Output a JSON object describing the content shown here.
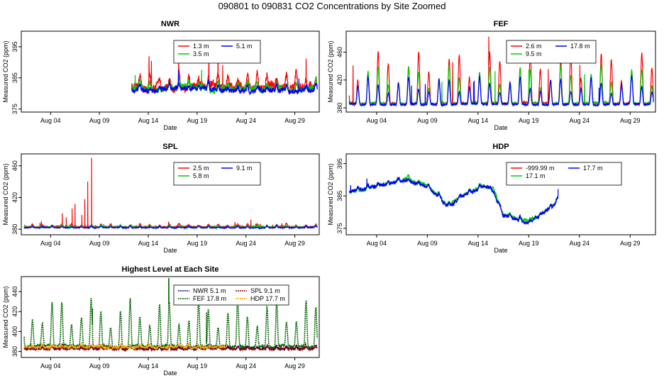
{
  "page_title": "090801  to  090831 CO2 Concentrations by Site Zoomed",
  "colors": {
    "red": "#ff0000",
    "green": "#00cc00",
    "blue": "#0000ff",
    "darkgreen": "#006400",
    "darkred": "#8b0000",
    "navy": "#000080",
    "orange": "#ffa500"
  },
  "chart_data": [
    {
      "id": "nwr",
      "type": "line",
      "title": "NWR",
      "xlabel": "Date",
      "ylabel": "Measured CO2 (ppm)",
      "xlim": [
        0,
        30.5
      ],
      "ylim": [
        374,
        400
      ],
      "xticks": [
        3,
        8,
        13,
        18,
        23,
        28
      ],
      "xticklabels": [
        "Aug 04",
        "Aug 09",
        "Aug 14",
        "Aug 19",
        "Aug 24",
        "Aug 29"
      ],
      "yticks": [
        375,
        385,
        395
      ],
      "yticklabels": [
        "375",
        "385",
        "395"
      ],
      "series": [
        {
          "name": "1.3 m",
          "color": "#ff0000",
          "start": 11.3,
          "end": 30.3,
          "base": 382,
          "diurnal": 5,
          "spike": 0.5,
          "noise": 2.2,
          "seed": 11
        },
        {
          "name": "3.5 m",
          "color": "#00cc00",
          "start": 11.3,
          "end": 30.3,
          "base": 381.5,
          "diurnal": 3,
          "spike": 0.2,
          "noise": 1.6,
          "seed": 12
        },
        {
          "name": "5.1 m",
          "color": "#0000ff",
          "start": 11.3,
          "end": 30.3,
          "base": 381,
          "diurnal": 2,
          "spike": 0.1,
          "noise": 1.4,
          "seed": 13
        }
      ],
      "legend": {
        "position": "top-center",
        "columns": 2,
        "style": "line"
      }
    },
    {
      "id": "fef",
      "type": "line",
      "title": "FEF",
      "xlabel": "Date",
      "ylabel": "Measured CO2 (ppm)",
      "xlim": [
        0,
        30.5
      ],
      "ylim": [
        374,
        490
      ],
      "xticks": [
        3,
        8,
        13,
        18,
        23,
        28
      ],
      "xticklabels": [
        "Aug 04",
        "Aug 09",
        "Aug 14",
        "Aug 19",
        "Aug 24",
        "Aug 29"
      ],
      "yticks": [
        380,
        420,
        460
      ],
      "yticklabels": [
        "380",
        "420",
        "460"
      ],
      "series": [
        {
          "name": "2.6 m",
          "color": "#ff0000",
          "start": 0.3,
          "end": 30.3,
          "base": 386,
          "diurnal": 75,
          "spike": 0.3,
          "noise": 3,
          "seed": 21
        },
        {
          "name": "9.5 m",
          "color": "#00cc00",
          "start": 0.3,
          "end": 30.3,
          "base": 386,
          "diurnal": 55,
          "spike": 0.2,
          "noise": 2.5,
          "seed": 22
        },
        {
          "name": "17.8 m",
          "color": "#0000ff",
          "start": 0.3,
          "end": 30.3,
          "base": 385,
          "diurnal": 40,
          "spike": 0.1,
          "noise": 2,
          "seed": 23
        }
      ],
      "legend": {
        "position": "top-center",
        "columns": 2,
        "style": "line"
      }
    },
    {
      "id": "spl",
      "type": "line",
      "title": "SPL",
      "xlabel": "Date",
      "ylabel": "Measured CO2 (ppm)",
      "xlim": [
        0,
        30.5
      ],
      "ylim": [
        373,
        475
      ],
      "xticks": [
        3,
        8,
        13,
        18,
        23,
        28
      ],
      "xticklabels": [
        "Aug 04",
        "Aug 09",
        "Aug 14",
        "Aug 19",
        "Aug 24",
        "Aug 29"
      ],
      "yticks": [
        380,
        420,
        460
      ],
      "yticklabels": [
        "380",
        "420",
        "460"
      ],
      "series": [
        {
          "name": "2.5 m",
          "color": "#ff0000",
          "start": 0.3,
          "end": 30.3,
          "base": 383,
          "diurnal": 4,
          "spike": 0.3,
          "noise": 1.2,
          "seed": 31,
          "peaks": [
            [
              4.2,
              400
            ],
            [
              4.6,
              395
            ],
            [
              5.2,
              406
            ],
            [
              5.5,
              412
            ],
            [
              6.2,
              398
            ],
            [
              6.5,
              418
            ],
            [
              6.8,
              440
            ],
            [
              7.2,
              470
            ],
            [
              23.5,
              392
            ]
          ]
        },
        {
          "name": "5.8 m",
          "color": "#00cc00",
          "start": 0.3,
          "end": 30.3,
          "base": 382.5,
          "diurnal": 2.5,
          "spike": 0.2,
          "noise": 1,
          "seed": 32
        },
        {
          "name": "9.1 m",
          "color": "#0000ff",
          "start": 0.3,
          "end": 30.3,
          "base": 382,
          "diurnal": 2,
          "spike": 0.1,
          "noise": 0.9,
          "seed": 33
        }
      ],
      "legend": {
        "position": "top-center",
        "columns": 2,
        "style": "line"
      }
    },
    {
      "id": "hdp",
      "type": "line",
      "title": "HDP",
      "xlabel": "Date",
      "ylabel": "Measured CO2 (ppm)",
      "xlim": [
        0,
        30.5
      ],
      "ylim": [
        373,
        398
      ],
      "xticks": [
        3,
        8,
        13,
        18,
        23,
        28
      ],
      "xticklabels": [
        "Aug 04",
        "Aug 09",
        "Aug 14",
        "Aug 19",
        "Aug 24",
        "Aug 29"
      ],
      "yticks": [
        375,
        385,
        395
      ],
      "yticklabels": [
        "375",
        "385",
        "395"
      ],
      "series": [
        {
          "name": "-999.99 m",
          "color": "#ff0000",
          "start": 0,
          "end": 0,
          "base": 385,
          "diurnal": 0,
          "spike": 0,
          "noise": 0,
          "seed": 41
        },
        {
          "name": "17.1 m",
          "color": "#00cc00",
          "start": 0.3,
          "end": 20.9,
          "base": 385,
          "diurnal": 1,
          "spike": 0.1,
          "noise": 0.8,
          "seed": 42,
          "trend": [
            [
              0.3,
              386
            ],
            [
              3,
              388
            ],
            [
              6,
              390
            ],
            [
              8,
              388
            ],
            [
              10,
              382
            ],
            [
              11.5,
              385
            ],
            [
              13.5,
              388
            ],
            [
              14.5,
              387
            ],
            [
              15.5,
              379
            ],
            [
              18,
              377
            ],
            [
              20.5,
              382
            ],
            [
              20.9,
              385
            ]
          ]
        },
        {
          "name": "17.7 m",
          "color": "#0000ff",
          "start": 0.3,
          "end": 20.9,
          "base": 385,
          "diurnal": 1.2,
          "spike": 0.1,
          "noise": 1,
          "seed": 43,
          "trend": [
            [
              0.3,
              386
            ],
            [
              3,
              388
            ],
            [
              6,
              390
            ],
            [
              8,
              388
            ],
            [
              10,
              382
            ],
            [
              11.5,
              385
            ],
            [
              13.5,
              388
            ],
            [
              14.5,
              387
            ],
            [
              15.5,
              379
            ],
            [
              18,
              377
            ],
            [
              20.5,
              382
            ],
            [
              20.9,
              385
            ]
          ]
        }
      ],
      "legend": {
        "position": "top-right",
        "columns": 2,
        "style": "line"
      }
    },
    {
      "id": "highest",
      "type": "line",
      "title": "Highest Level at Each Site",
      "xlabel": "Date",
      "ylabel": "Measured CO2 (ppm)",
      "xlim": [
        0,
        30.5
      ],
      "ylim": [
        374,
        455
      ],
      "xticks": [
        3,
        8,
        13,
        18,
        23,
        28
      ],
      "xticklabels": [
        "Aug 04",
        "Aug 09",
        "Aug 14",
        "Aug 19",
        "Aug 24",
        "Aug 29"
      ],
      "yticks": [
        380,
        400,
        420,
        440
      ],
      "yticklabels": [
        "380",
        "400",
        "420",
        "440"
      ],
      "series": [
        {
          "name": "NWR   5.1 m",
          "color": "#000080",
          "start": 0.3,
          "end": 30.3,
          "base": 383,
          "diurnal": 3,
          "spike": 0.1,
          "noise": 1.2,
          "seed": 51
        },
        {
          "name": "FEF   17.8 m",
          "color": "#006400",
          "start": 0.3,
          "end": 30.3,
          "base": 385,
          "diurnal": 48,
          "spike": 0.1,
          "noise": 2,
          "seed": 52
        },
        {
          "name": "SPL   9.1 m",
          "color": "#8b0000",
          "start": 0.3,
          "end": 30.3,
          "base": 382.5,
          "diurnal": 3,
          "spike": 0.1,
          "noise": 1.2,
          "seed": 53
        },
        {
          "name": "HDP   17.7 m",
          "color": "#ffa500",
          "start": 0.3,
          "end": 20.9,
          "base": 384,
          "diurnal": 3,
          "spike": 0.1,
          "noise": 1.4,
          "seed": 54
        }
      ],
      "legend": {
        "position": "top-center",
        "columns": 2,
        "style": "dashed"
      }
    }
  ]
}
